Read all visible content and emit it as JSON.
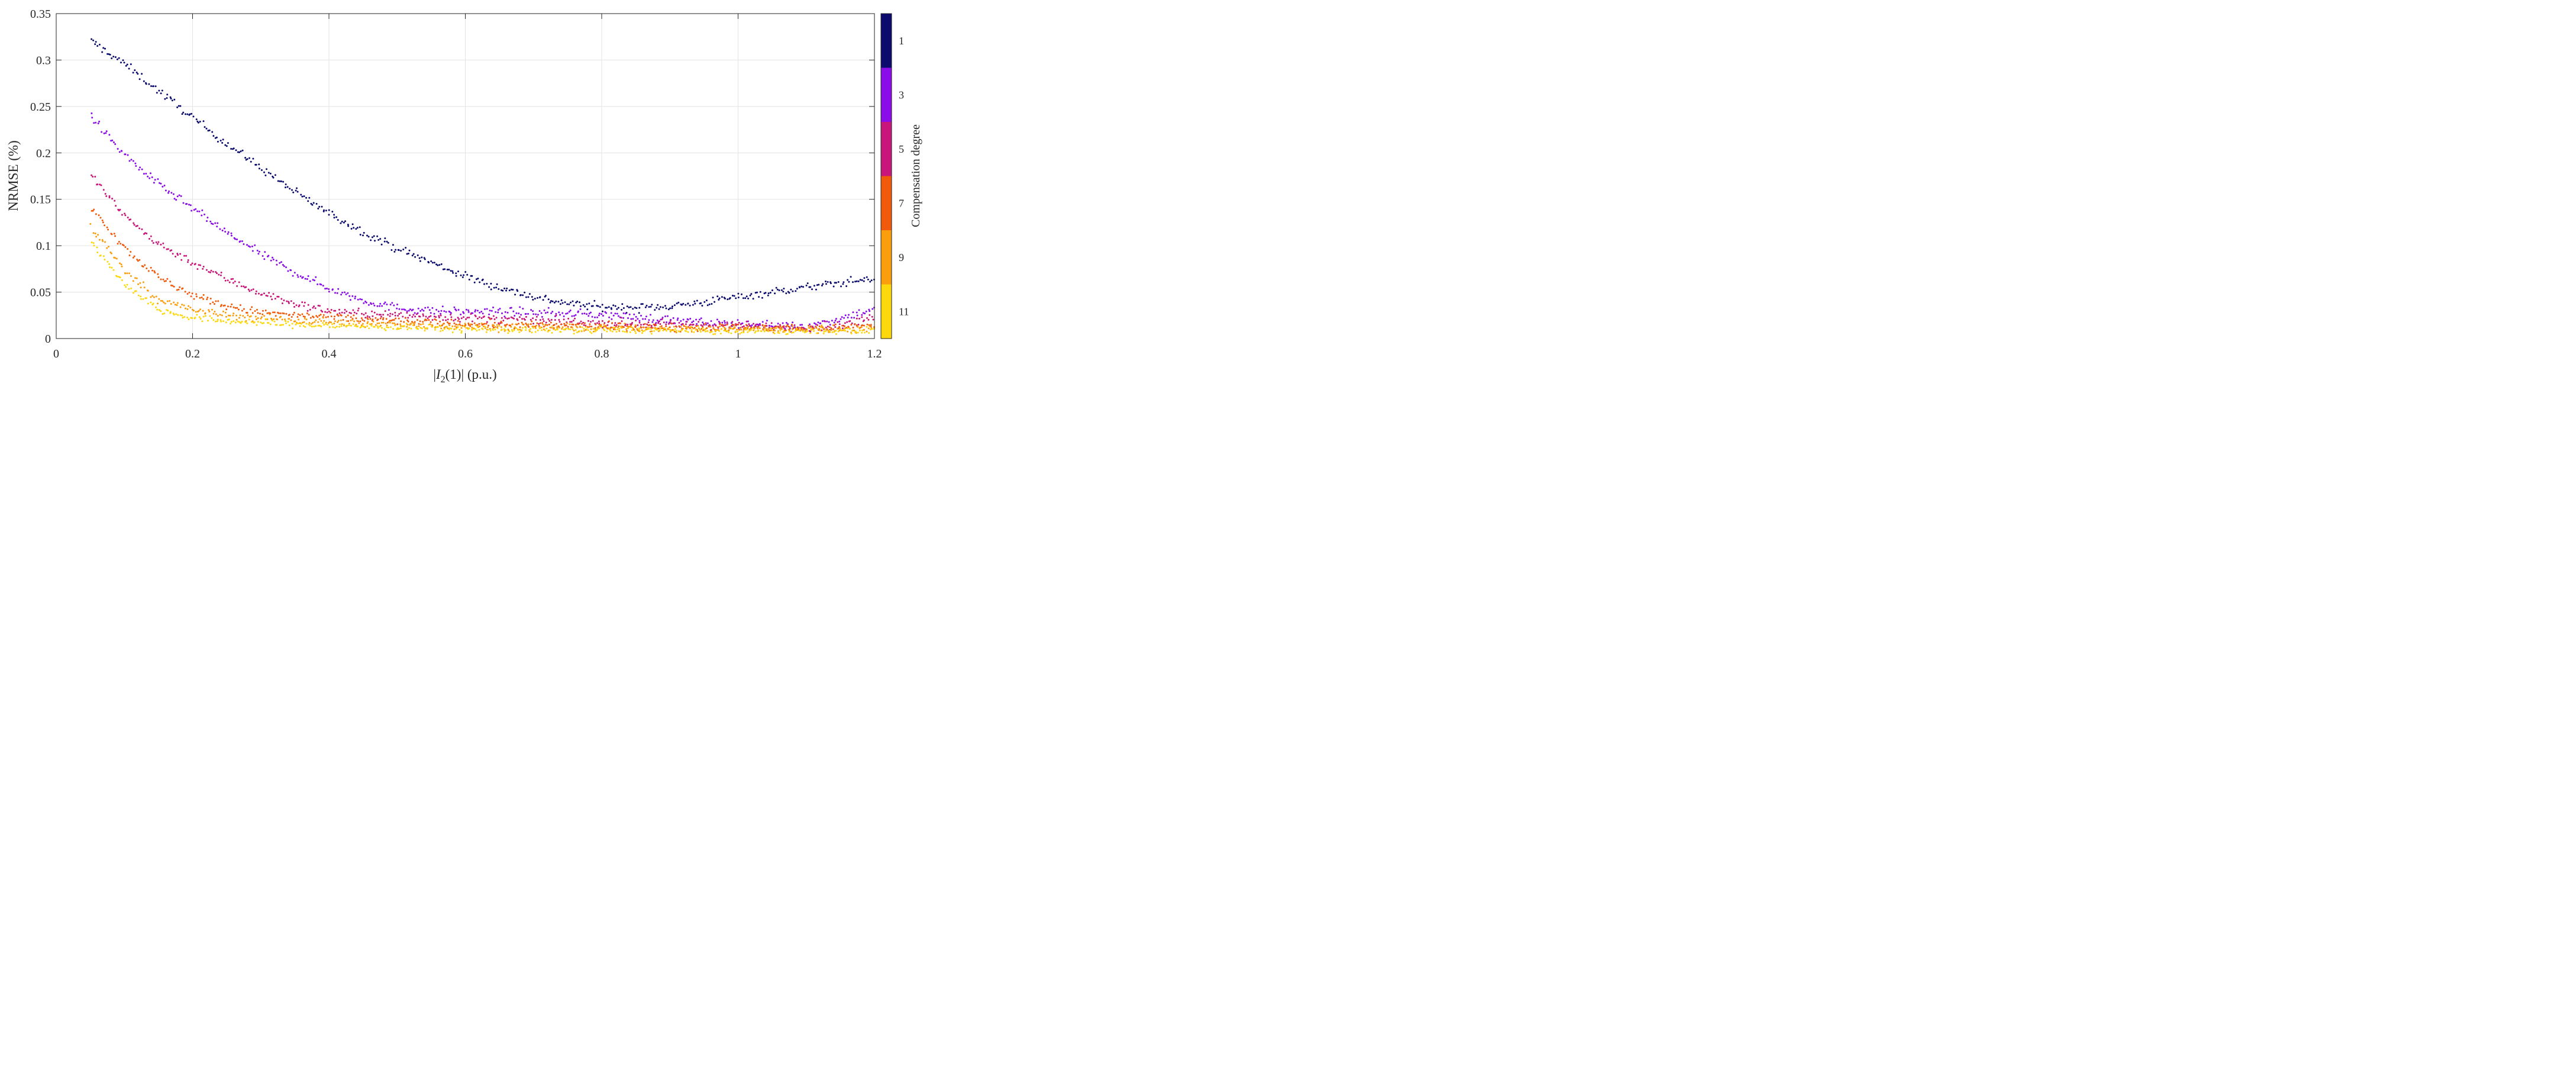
{
  "chart_data": {
    "type": "scatter",
    "title": "",
    "xlabel": {
      "prefix": "|",
      "var": "I",
      "sub": "2",
      "suffix": "(1)| (p.u.)"
    },
    "ylabel": "NRMSE (%)",
    "xlim": [
      0,
      1.2
    ],
    "ylim": [
      0,
      0.35
    ],
    "xticks": [
      0,
      0.2,
      0.4,
      0.6,
      0.8,
      1,
      1.2
    ],
    "xtick_labels": [
      "0",
      "0.2",
      "0.4",
      "0.6",
      "0.8",
      "1",
      "1.2"
    ],
    "yticks": [
      0,
      0.05,
      0.1,
      0.15,
      0.2,
      0.25,
      0.3,
      0.35
    ],
    "ytick_labels": [
      "0",
      "0.05",
      "0.1",
      "0.15",
      "0.2",
      "0.25",
      "0.3",
      "0.35"
    ],
    "grid": true,
    "colorbar": {
      "title": "Compensation degree",
      "levels": [
        1,
        3,
        5,
        7,
        9,
        11
      ],
      "labels": [
        "1",
        "3",
        "5",
        "7",
        "9",
        "11"
      ],
      "colors": [
        "#0b0b6e",
        "#8a0ce8",
        "#c8167a",
        "#f05a0a",
        "#fa9e0e",
        "#fcd80c"
      ]
    },
    "series": [
      {
        "name": "1",
        "color": "#0b0b6e",
        "spread": 0.0022,
        "x": [
          0.05,
          0.1,
          0.15,
          0.2,
          0.25,
          0.3,
          0.35,
          0.4,
          0.45,
          0.5,
          0.55,
          0.6,
          0.65,
          0.7,
          0.75,
          0.8,
          0.85,
          0.9,
          0.95,
          1.0,
          1.05,
          1.1,
          1.15,
          1.2
        ],
        "y": [
          0.321,
          0.296,
          0.267,
          0.238,
          0.21,
          0.184,
          0.158,
          0.135,
          0.115,
          0.097,
          0.082,
          0.067,
          0.055,
          0.045,
          0.038,
          0.034,
          0.033,
          0.035,
          0.039,
          0.045,
          0.05,
          0.055,
          0.06,
          0.065
        ]
      },
      {
        "name": "3",
        "color": "#8a0ce8",
        "spread": 0.0022,
        "x": [
          0.05,
          0.1,
          0.15,
          0.2,
          0.25,
          0.3,
          0.35,
          0.4,
          0.45,
          0.5,
          0.55,
          0.6,
          0.65,
          0.7,
          0.75,
          0.8,
          0.85,
          0.9,
          0.95,
          1.0,
          1.05,
          1.1,
          1.15,
          1.2
        ],
        "y": [
          0.24,
          0.198,
          0.166,
          0.14,
          0.114,
          0.091,
          0.071,
          0.054,
          0.041,
          0.033,
          0.03,
          0.029,
          0.029,
          0.028,
          0.027,
          0.026,
          0.023,
          0.02,
          0.017,
          0.016,
          0.014,
          0.013,
          0.022,
          0.032
        ]
      },
      {
        "name": "5",
        "color": "#c8167a",
        "spread": 0.0022,
        "x": [
          0.05,
          0.1,
          0.15,
          0.2,
          0.25,
          0.3,
          0.35,
          0.4,
          0.45,
          0.5,
          0.55,
          0.6,
          0.65,
          0.7,
          0.75,
          0.8,
          0.85,
          0.9,
          0.95,
          1.0,
          1.05,
          1.1,
          1.15,
          1.2
        ],
        "y": [
          0.177,
          0.132,
          0.102,
          0.082,
          0.064,
          0.049,
          0.037,
          0.03,
          0.027,
          0.025,
          0.024,
          0.022,
          0.021,
          0.019,
          0.018,
          0.017,
          0.016,
          0.015,
          0.015,
          0.014,
          0.013,
          0.012,
          0.014,
          0.023
        ]
      },
      {
        "name": "7",
        "color": "#f05a0a",
        "spread": 0.002,
        "x": [
          0.05,
          0.1,
          0.15,
          0.2,
          0.25,
          0.3,
          0.35,
          0.4,
          0.45,
          0.5,
          0.55,
          0.6,
          0.65,
          0.7,
          0.75,
          0.8,
          0.85,
          0.9,
          0.95,
          1.0,
          1.05,
          1.1,
          1.15,
          1.2
        ],
        "y": [
          0.144,
          0.098,
          0.066,
          0.047,
          0.035,
          0.028,
          0.025,
          0.023,
          0.021,
          0.019,
          0.017,
          0.016,
          0.015,
          0.014,
          0.014,
          0.013,
          0.013,
          0.012,
          0.012,
          0.012,
          0.011,
          0.011,
          0.012,
          0.015
        ]
      },
      {
        "name": "9",
        "color": "#fa9e0e",
        "spread": 0.002,
        "x": [
          0.05,
          0.1,
          0.15,
          0.2,
          0.25,
          0.3,
          0.35,
          0.4,
          0.45,
          0.5,
          0.55,
          0.6,
          0.65,
          0.7,
          0.75,
          0.8,
          0.85,
          0.9,
          0.95,
          1.0,
          1.05,
          1.1,
          1.15,
          1.2
        ],
        "y": [
          0.121,
          0.074,
          0.042,
          0.031,
          0.025,
          0.022,
          0.02,
          0.018,
          0.016,
          0.015,
          0.014,
          0.013,
          0.012,
          0.012,
          0.011,
          0.011,
          0.011,
          0.011,
          0.01,
          0.01,
          0.01,
          0.01,
          0.01,
          0.011
        ]
      },
      {
        "name": "11",
        "color": "#fcd80c",
        "spread": 0.0018,
        "x": [
          0.05,
          0.1,
          0.15,
          0.2,
          0.25,
          0.3,
          0.35,
          0.4,
          0.45,
          0.5,
          0.55,
          0.6,
          0.65,
          0.7,
          0.75,
          0.8,
          0.85,
          0.9,
          0.95,
          1.0,
          1.05,
          1.1,
          1.15,
          1.2
        ],
        "y": [
          0.105,
          0.059,
          0.031,
          0.022,
          0.019,
          0.017,
          0.015,
          0.014,
          0.013,
          0.012,
          0.011,
          0.01,
          0.01,
          0.009,
          0.009,
          0.009,
          0.009,
          0.009,
          0.008,
          0.008,
          0.008,
          0.008,
          0.008,
          0.009
        ]
      }
    ]
  }
}
